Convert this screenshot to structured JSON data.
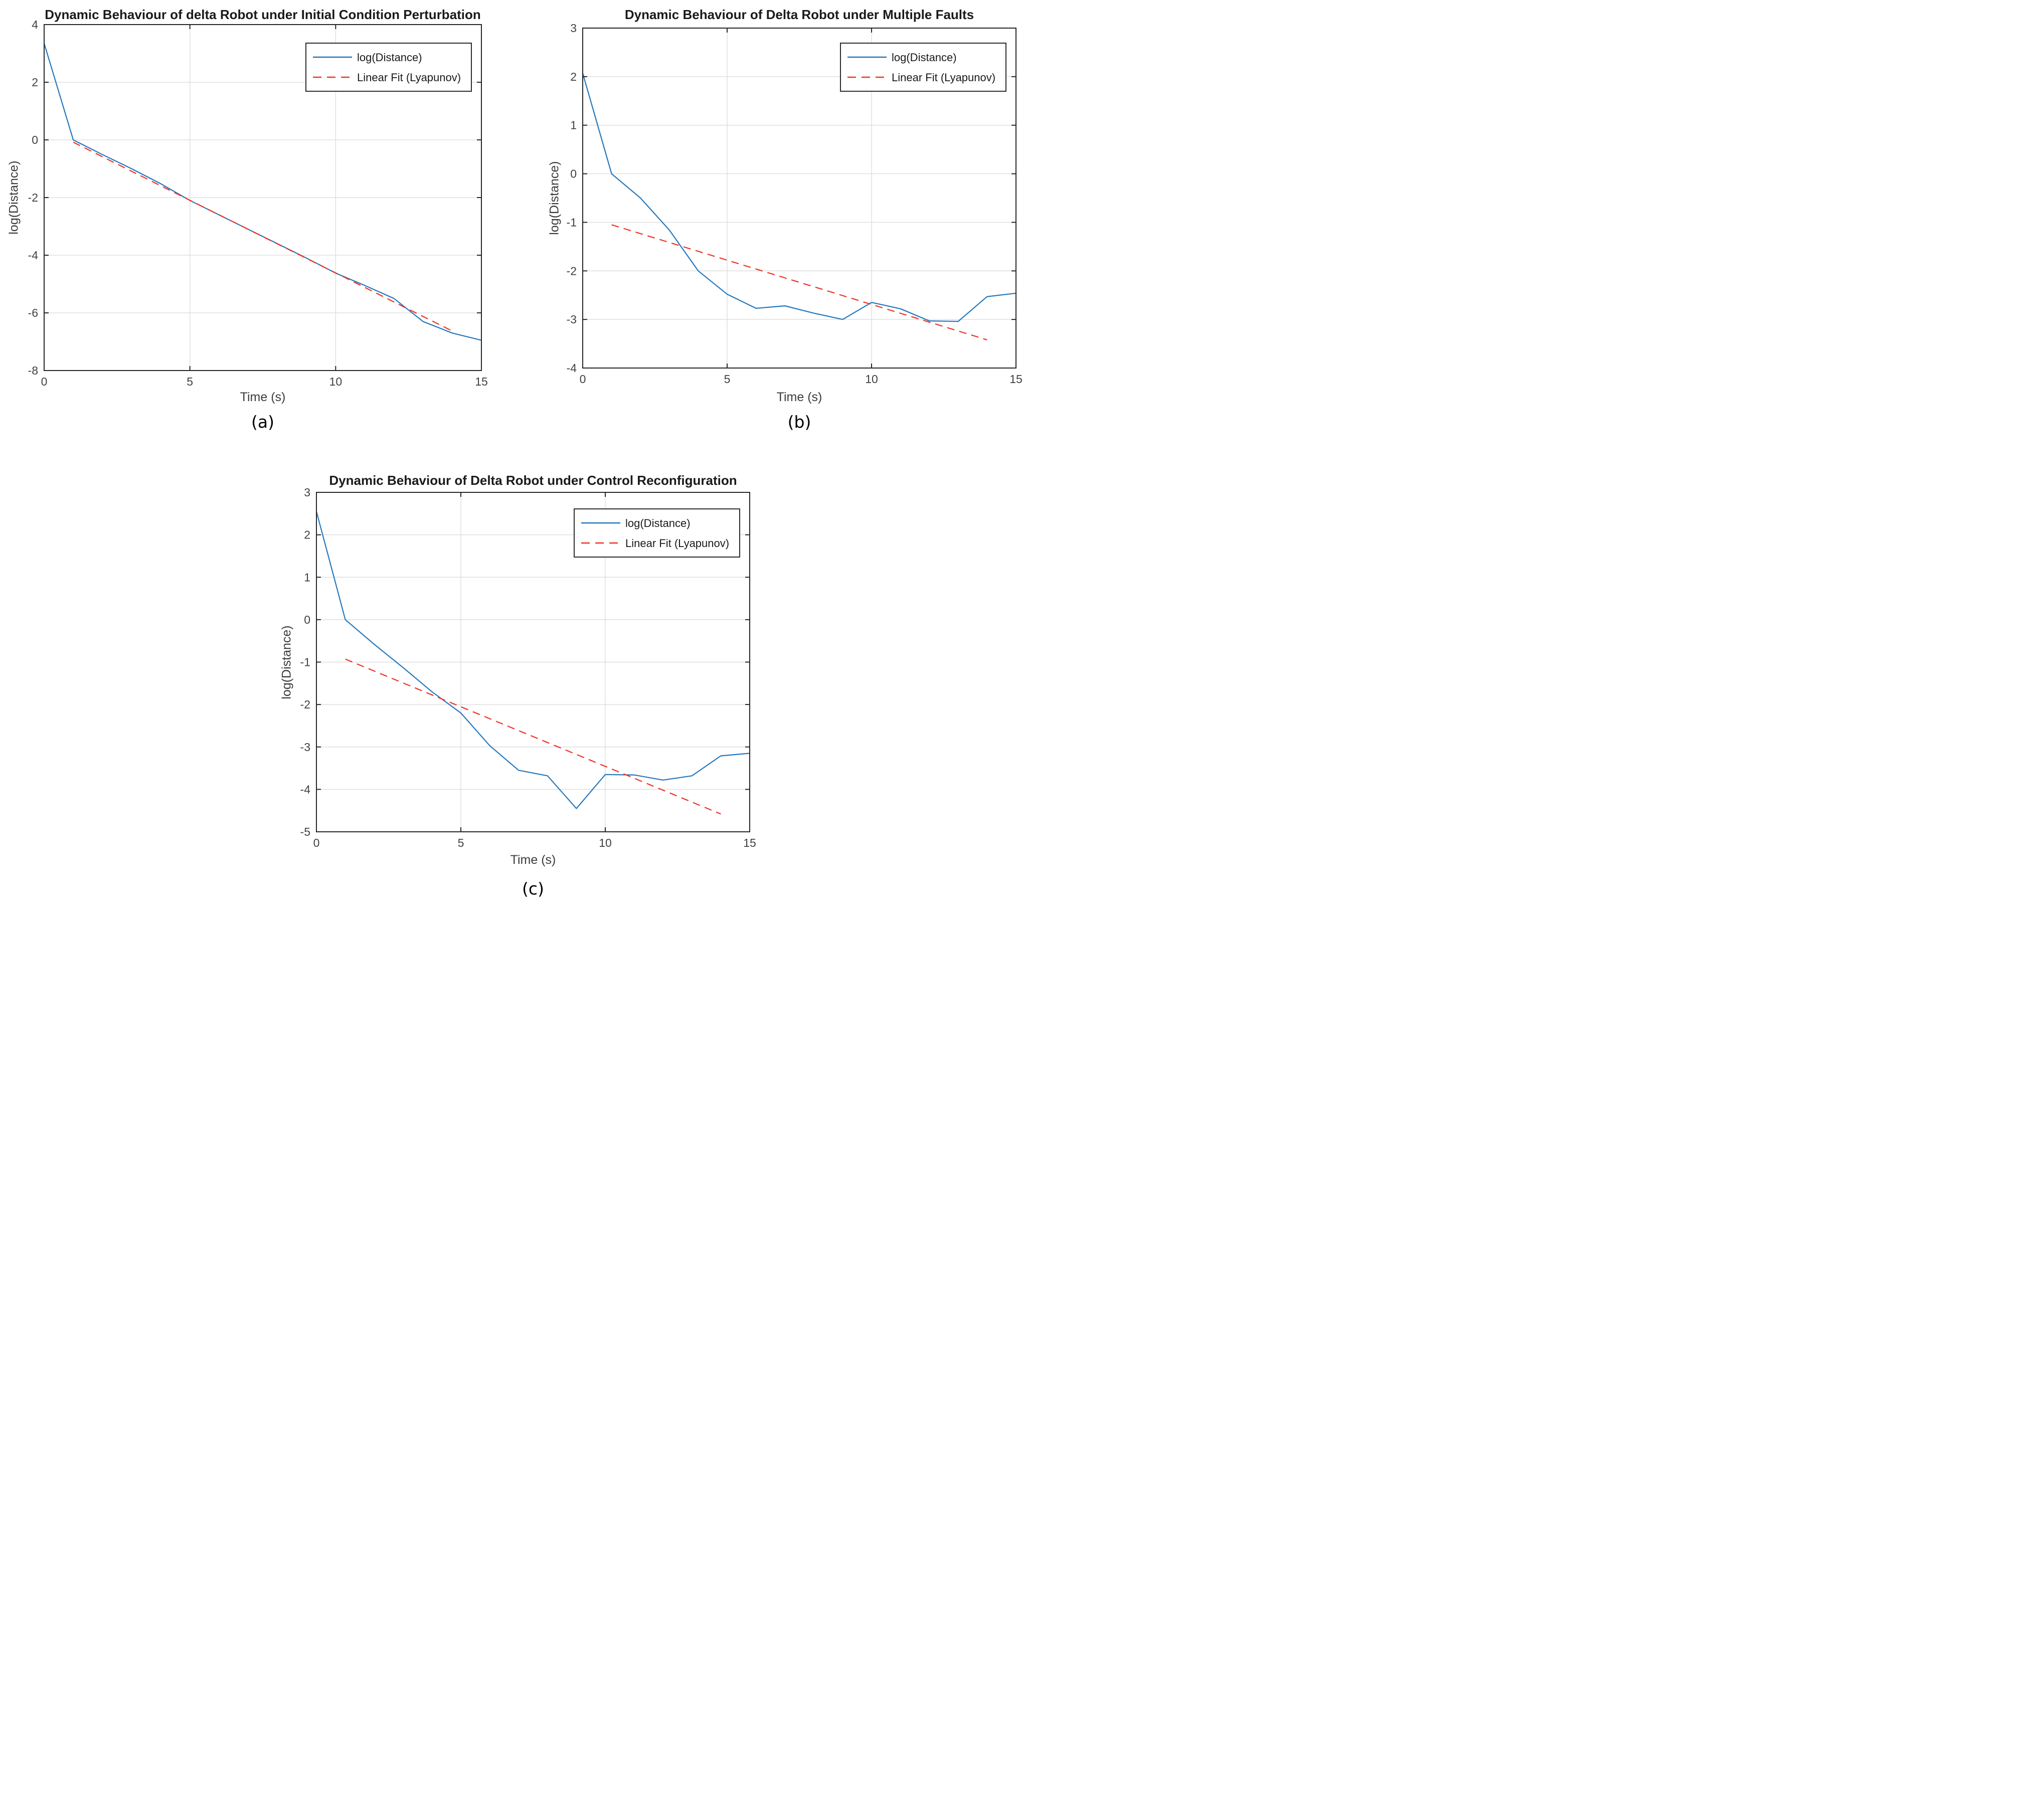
{
  "colors": {
    "line_blue": "#2478bd",
    "fit_red": "#f03226",
    "grid": "#d9d9d9",
    "axis": "#262626",
    "tick_text": "#414141",
    "legend_border": "#2b2b2b",
    "background": "#ffffff"
  },
  "chart_data": [
    {
      "id": "a",
      "type": "line",
      "title": "Dynamic Behaviour of delta Robot under Initial Condition Perturbation",
      "xlabel": "Time (s)",
      "ylabel": "log(Distance)",
      "caption": "(a)",
      "xlim": [
        0,
        15
      ],
      "ylim": [
        -8,
        4
      ],
      "xticks": [
        0,
        5,
        10,
        15
      ],
      "yticks": [
        4,
        2,
        0,
        -2,
        -4,
        -6,
        -8
      ],
      "grid": true,
      "legend": {
        "position": "top-right",
        "entries": [
          {
            "label": "log(Distance)",
            "style": "solid",
            "color_key": "line_blue"
          },
          {
            "label": "Linear Fit (Lyapunov)",
            "style": "dashed",
            "color_key": "fit_red"
          }
        ]
      },
      "series": [
        {
          "name": "log(Distance)",
          "style": "solid",
          "color_key": "line_blue",
          "x": [
            0,
            1,
            2,
            3,
            4,
            5,
            6,
            7,
            8,
            9,
            10,
            11,
            12,
            13,
            14,
            15
          ],
          "y": [
            3.35,
            0.0,
            -0.51,
            -1.0,
            -1.52,
            -2.1,
            -2.6,
            -3.1,
            -3.6,
            -4.1,
            -4.62,
            -5.05,
            -5.5,
            -6.3,
            -6.7,
            -6.95
          ]
        },
        {
          "name": "Linear Fit (Lyapunov)",
          "style": "dashed",
          "color_key": "fit_red",
          "x": [
            1,
            14
          ],
          "y": [
            -0.08,
            -6.63
          ]
        }
      ]
    },
    {
      "id": "b",
      "type": "line",
      "title": "Dynamic Behaviour of Delta Robot under Multiple Faults",
      "xlabel": "Time (s)",
      "ylabel": "log(Distance)",
      "caption": "(b)",
      "xlim": [
        0,
        15
      ],
      "ylim": [
        -4,
        3
      ],
      "xticks": [
        0,
        5,
        10,
        15
      ],
      "yticks": [
        3,
        2,
        1,
        0,
        -1,
        -2,
        -3,
        -4
      ],
      "grid": true,
      "legend": {
        "position": "top-right",
        "entries": [
          {
            "label": "log(Distance)",
            "style": "solid",
            "color_key": "line_blue"
          },
          {
            "label": "Linear Fit (Lyapunov)",
            "style": "dashed",
            "color_key": "fit_red"
          }
        ]
      },
      "series": [
        {
          "name": "log(Distance)",
          "style": "solid",
          "color_key": "line_blue",
          "x": [
            0,
            1,
            2,
            3,
            4,
            5,
            6,
            7,
            8,
            9,
            10,
            11,
            12,
            13,
            14,
            15
          ],
          "y": [
            2.07,
            0.0,
            -0.5,
            -1.16,
            -2.0,
            -2.48,
            -2.77,
            -2.72,
            -2.87,
            -3.0,
            -2.65,
            -2.78,
            -3.03,
            -3.04,
            -2.53,
            -2.46
          ]
        },
        {
          "name": "Linear Fit (Lyapunov)",
          "style": "dashed",
          "color_key": "fit_red",
          "x": [
            1,
            14
          ],
          "y": [
            -1.05,
            -3.42
          ]
        }
      ]
    },
    {
      "id": "c",
      "type": "line",
      "title": "Dynamic Behaviour of Delta Robot under Control Reconfiguration",
      "xlabel": "Time (s)",
      "ylabel": "log(Distance)",
      "caption": "(c)",
      "xlim": [
        0,
        15
      ],
      "ylim": [
        -5,
        3
      ],
      "xticks": [
        0,
        5,
        10,
        15
      ],
      "yticks": [
        3,
        2,
        1,
        0,
        -1,
        -2,
        -3,
        -4,
        -5
      ],
      "grid": true,
      "legend": {
        "position": "top-right",
        "entries": [
          {
            "label": "log(Distance)",
            "style": "solid",
            "color_key": "line_blue"
          },
          {
            "label": "Linear Fit (Lyapunov)",
            "style": "dashed",
            "color_key": "fit_red"
          }
        ]
      },
      "series": [
        {
          "name": "log(Distance)",
          "style": "solid",
          "color_key": "line_blue",
          "x": [
            0,
            1,
            2,
            3,
            4,
            5,
            6,
            7,
            8,
            9,
            10,
            11,
            12,
            13,
            14,
            15
          ],
          "y": [
            2.55,
            0.0,
            -0.58,
            -1.13,
            -1.7,
            -2.2,
            -2.97,
            -3.55,
            -3.68,
            -4.45,
            -3.65,
            -3.66,
            -3.78,
            -3.68,
            -3.21,
            -3.15
          ]
        },
        {
          "name": "Linear Fit (Lyapunov)",
          "style": "dashed",
          "color_key": "fit_red",
          "x": [
            1,
            14
          ],
          "y": [
            -0.93,
            -4.58
          ]
        }
      ]
    }
  ]
}
